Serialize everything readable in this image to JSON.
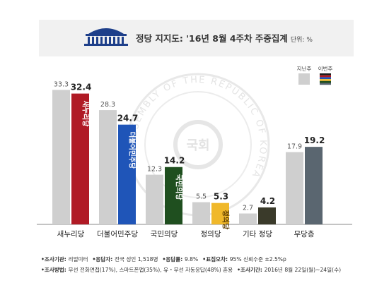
{
  "header": {
    "title": "정당 지지도: '16년 8월 4주차 주중집계",
    "unit": "단위: %"
  },
  "legend": {
    "prev_label": "지난주",
    "curr_label": "이번주"
  },
  "watermark": {
    "text": "ASSEMBLY OF THE REPUBLIC OF KOREA",
    "center": "국회"
  },
  "chart_data": {
    "type": "bar",
    "title": "정당 지지도: '16년 8월 4주차 주중집계",
    "unit": "%",
    "categories": [
      "새누리당",
      "더불어민주당",
      "국민의당",
      "정의당",
      "기타 정당",
      "무당층"
    ],
    "series": [
      {
        "name": "지난주",
        "values": [
          33.3,
          28.3,
          12.3,
          5.5,
          2.7,
          17.9
        ],
        "color": "#cfcfcf"
      },
      {
        "name": "이번주",
        "values": [
          32.4,
          24.7,
          14.2,
          5.3,
          4.2,
          19.2
        ],
        "colors": [
          "#b01a25",
          "#1f55b8",
          "#1f4f1f",
          "#f0b82a",
          "#3a3a2a",
          "#5a6670"
        ]
      }
    ],
    "bar_logos": [
      "새누리당",
      "더불어민주당",
      "국민의당",
      "정의당",
      "",
      ""
    ],
    "ylim": [
      0,
      36
    ],
    "grid": false,
    "legend_position": "top-right"
  },
  "footer": {
    "line1": [
      {
        "key": "조사기관",
        "val": "리얼미터"
      },
      {
        "key": "응답자",
        "val": "전국 성인 1,518명"
      },
      {
        "key": "응답률",
        "val": "9.8%"
      },
      {
        "key": "표집오차",
        "val": "95% 신뢰수준 ±2.5%p"
      }
    ],
    "line2": [
      {
        "key": "조사방법",
        "val": "무선 전화면접(17%), 스마트폰앱(35%), 유・무선 자동응답(48%) 혼용"
      },
      {
        "key": "조사기간",
        "val": "2016년 8월 22일(월)~24일(수)"
      }
    ]
  }
}
